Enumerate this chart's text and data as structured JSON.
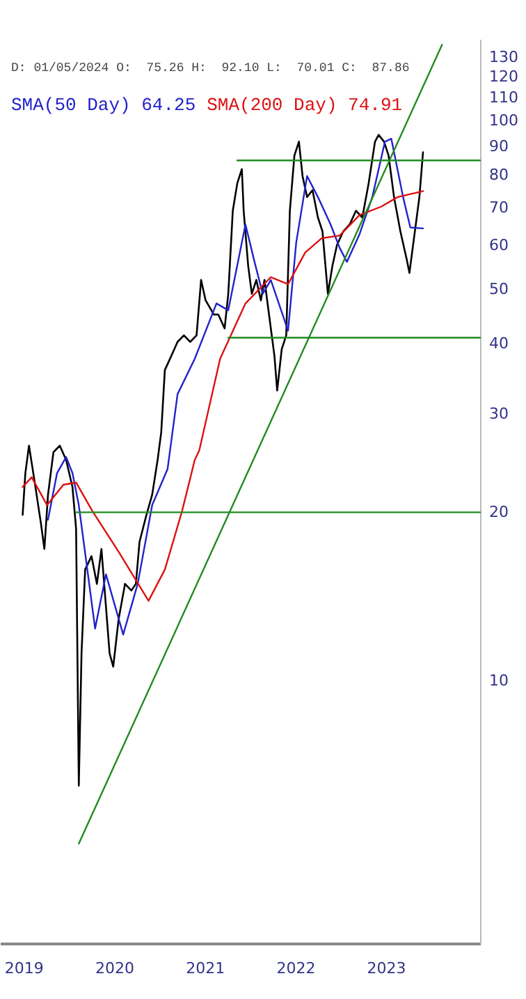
{
  "chart_data": {
    "type": "line",
    "subtitle": "D: 01/05/2024 O:  75.26 H:  92.10 L:  70.01 C:  87.86",
    "legend": "top left",
    "xlim": [
      2018.74,
      2024.04
    ],
    "ylim": [
      3.4,
      140
    ],
    "log": "y",
    "xticks": [
      2019,
      2020,
      2021,
      2022,
      2023
    ],
    "yticks": [
      10,
      20,
      30,
      40,
      50,
      60,
      70,
      80,
      90,
      100,
      110,
      120,
      130
    ],
    "series": [
      {
        "color": "#000000",
        "x": [
          2018.99,
          2019.02,
          2019.06,
          2019.12,
          2019.19,
          2019.23,
          2019.27,
          2019.33,
          2019.4,
          2019.47,
          2019.54,
          2019.58,
          2019.61,
          2019.64,
          2019.68,
          2019.75,
          2019.81,
          2019.86,
          2019.95,
          2019.99,
          2020.05,
          2020.12,
          2020.19,
          2020.24,
          2020.28,
          2020.35,
          2020.42,
          2020.48,
          2020.52,
          2020.56,
          2020.63,
          2020.7,
          2020.77,
          2020.84,
          2020.91,
          2020.96,
          2021.01,
          2021.1,
          2021.15,
          2021.22,
          2021.26,
          2021.31,
          2021.36,
          2021.41,
          2021.43,
          2021.48,
          2021.52,
          2021.57,
          2021.62,
          2021.66,
          2021.71,
          2021.77,
          2021.8,
          2021.85,
          2021.9,
          2021.94,
          2021.99,
          2022.04,
          2022.08,
          2022.13,
          2022.19,
          2022.25,
          2022.3,
          2022.36,
          2022.41,
          2022.46,
          2022.53,
          2022.6,
          2022.67,
          2022.74,
          2022.81,
          2022.88,
          2022.92,
          2022.98,
          2023.03,
          2023.09,
          2023.16,
          2023.23,
          2023.26,
          2023.31,
          2023.37,
          2023.41
        ],
        "values": [
          19.8,
          23.5,
          26.3,
          22.8,
          19.2,
          17.2,
          21.5,
          25.6,
          26.3,
          24.8,
          22.2,
          18.7,
          6.5,
          11.2,
          15.8,
          16.7,
          14.9,
          17.2,
          11.2,
          10.6,
          12.9,
          14.9,
          14.5,
          14.9,
          17.7,
          19.6,
          21.5,
          24.8,
          27.8,
          35.9,
          38.0,
          40.3,
          41.4,
          40.3,
          41.4,
          52.0,
          47.8,
          45.1,
          45.1,
          42.6,
          49.1,
          69.1,
          77.4,
          82.0,
          69.1,
          55.1,
          49.1,
          52.0,
          47.8,
          52.0,
          45.1,
          38.0,
          33.0,
          39.1,
          41.4,
          69.1,
          86.7,
          91.8,
          79.7,
          73.1,
          75.2,
          67.2,
          63.5,
          49.1,
          55.1,
          60.0,
          63.5,
          65.3,
          69.1,
          67.2,
          77.4,
          91.8,
          94.4,
          91.8,
          86.7,
          73.1,
          63.5,
          56.6,
          53.5,
          61.7,
          73.1,
          87.9
        ]
      },
      {
        "name": "SMA(50 Day) 64.25",
        "color": "#2222cc",
        "x": [
          2019.27,
          2019.37,
          2019.47,
          2019.54,
          2019.61,
          2019.79,
          2019.91,
          2020.1,
          2020.26,
          2020.42,
          2020.59,
          2020.7,
          2020.89,
          2021.13,
          2021.26,
          2021.45,
          2021.55,
          2021.64,
          2021.73,
          2021.92,
          2022.01,
          2022.13,
          2022.25,
          2022.39,
          2022.49,
          2022.57,
          2022.71,
          2022.85,
          2022.99,
          2023.06,
          2023.19,
          2023.27,
          2023.41
        ],
        "values": [
          19.4,
          23.5,
          25.1,
          23.5,
          20.6,
          12.4,
          15.5,
          12.1,
          14.9,
          20.6,
          23.9,
          32.5,
          37.6,
          47.2,
          45.9,
          65.3,
          56.0,
          49.1,
          52.0,
          42.2,
          60.6,
          79.7,
          73.1,
          65.3,
          59.3,
          56.0,
          62.8,
          73.1,
          91.8,
          92.9,
          73.1,
          64.5,
          64.25
        ]
      },
      {
        "name": "SMA(200 Day) 74.91",
        "color": "#dd1111",
        "x": [
          2018.99,
          2019.09,
          2019.26,
          2019.44,
          2019.58,
          2019.76,
          2020.05,
          2020.38,
          2020.56,
          2020.75,
          2020.89,
          2020.94,
          2021.17,
          2021.45,
          2021.73,
          2021.92,
          2022.11,
          2022.29,
          2022.49,
          2022.71,
          2022.95,
          2023.13,
          2023.41
        ],
        "values": [
          22.2,
          23.1,
          20.6,
          22.4,
          22.6,
          20.1,
          17.0,
          13.9,
          15.8,
          20.1,
          24.8,
          25.8,
          37.6,
          47.2,
          52.6,
          51.1,
          58.2,
          61.7,
          62.4,
          67.9,
          70.3,
          73.1,
          74.91
        ]
      },
      {
        "color": "#228b22",
        "x": [
          2019.61,
          2023.62
        ],
        "values": [
          5.12,
          136.7
        ]
      },
      {
        "color": "#228b22",
        "x": [
          2021.36,
          2024.04
        ],
        "values": [
          85,
          85
        ]
      },
      {
        "color": "#228b22",
        "x": [
          2021.26,
          2024.04
        ],
        "values": [
          41,
          41
        ]
      },
      {
        "color": "#228b22",
        "x": [
          2019.58,
          2024.04
        ],
        "values": [
          20,
          20
        ]
      }
    ]
  }
}
